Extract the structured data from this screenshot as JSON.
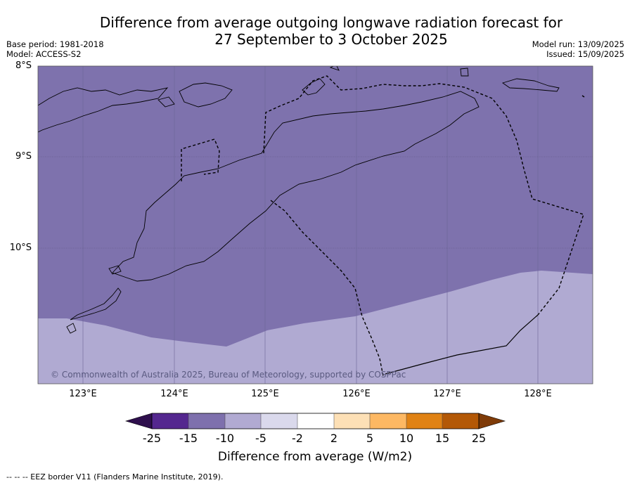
{
  "title_lines": [
    "Difference from average outgoing longwave radiation forecast for",
    "27 September to 3 October 2025"
  ],
  "meta_left": [
    "Base period: 1981-2018",
    "Model: ACCESS-S2"
  ],
  "meta_right": [
    "Model run: 13/09/2025",
    "Issued: 15/09/2025"
  ],
  "lat_labels": [
    "8°S",
    "9°S",
    "10°S"
  ],
  "lon_labels": [
    "123°E",
    "124°E",
    "125°E",
    "126°E",
    "127°E",
    "128°E"
  ],
  "credit": "© Commonwealth of Australia 2025, Bureau of Meteorology, supported by COSPPac",
  "colorbar": {
    "ticks": [
      "-25",
      "-15",
      "-10",
      "-5",
      "-2",
      "2",
      "5",
      "10",
      "15",
      "25"
    ],
    "colors": [
      "#2e0f4d",
      "#54278f",
      "#7e70ad",
      "#b1aad2",
      "#dad9ec",
      "#ffffff",
      "#fde0b6",
      "#fdb863",
      "#e08214",
      "#b35806",
      "#7f3b08"
    ],
    "label": "Difference from average (W/m2)"
  },
  "footnote": "--  --  -- EEZ border V11 (Flanders Marine Institute, 2019).",
  "map": {
    "fill_strong": "#7e72ad",
    "fill_light": "#b0aad2"
  }
}
